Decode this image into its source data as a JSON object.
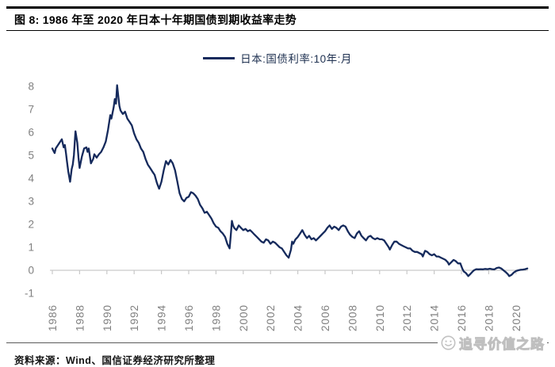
{
  "header": {
    "title": "图 8: 1986 年至 2020 年日本十年期国债到期收益率走势"
  },
  "legend": {
    "label": "日本:国债利率:10年:月"
  },
  "footer": {
    "source": "资料来源：Wind、国信证券经济研究所整理",
    "watermark": "追寻价值之路",
    "watermark_icon": "smiley-face-icon"
  },
  "colors": {
    "line": "#152a5c",
    "legend_text": "#1e3050",
    "axis_label": "#808080",
    "axis_line": "#c9c9c9",
    "title_text": "#000000",
    "rules": "#000000",
    "bottom_rule": "#5a5a5a",
    "watermark": "#bfbfbf"
  },
  "chart_data": {
    "type": "line",
    "title": "1986年至2020年日本十年期国债到期收益率走势",
    "xlabel": "",
    "ylabel": "",
    "xlim": [
      1985.8,
      2021.8
    ],
    "ylim": [
      -1,
      8.3
    ],
    "grid": false,
    "legend_position": "top-center",
    "x_ticks": [
      1986,
      1988,
      1990,
      1992,
      1994,
      1996,
      1998,
      2000,
      2002,
      2004,
      2006,
      2008,
      2010,
      2012,
      2014,
      2016,
      2018,
      2020
    ],
    "y_ticks": [
      8,
      7,
      6,
      5,
      4,
      3,
      2,
      1,
      0,
      -1
    ],
    "series": [
      {
        "name": "日本:国债利率:10年:月",
        "unit": "%",
        "points": [
          [
            1986.0,
            5.3
          ],
          [
            1986.08,
            5.2
          ],
          [
            1986.17,
            5.1
          ],
          [
            1986.25,
            5.3
          ],
          [
            1986.42,
            5.45
          ],
          [
            1986.58,
            5.6
          ],
          [
            1986.7,
            5.7
          ],
          [
            1986.83,
            5.35
          ],
          [
            1986.92,
            5.45
          ],
          [
            1987.0,
            5.1
          ],
          [
            1987.08,
            4.7
          ],
          [
            1987.17,
            4.3
          ],
          [
            1987.3,
            3.85
          ],
          [
            1987.42,
            4.4
          ],
          [
            1987.5,
            4.6
          ],
          [
            1987.58,
            5.0
          ],
          [
            1987.7,
            6.05
          ],
          [
            1987.83,
            5.55
          ],
          [
            1987.92,
            4.9
          ],
          [
            1988.0,
            4.45
          ],
          [
            1988.17,
            4.95
          ],
          [
            1988.33,
            5.3
          ],
          [
            1988.5,
            5.35
          ],
          [
            1988.58,
            5.15
          ],
          [
            1988.67,
            5.3
          ],
          [
            1988.83,
            4.65
          ],
          [
            1989.0,
            4.85
          ],
          [
            1989.08,
            5.05
          ],
          [
            1989.25,
            4.9
          ],
          [
            1989.42,
            5.05
          ],
          [
            1989.58,
            5.15
          ],
          [
            1989.75,
            5.35
          ],
          [
            1989.92,
            5.6
          ],
          [
            1990.08,
            6.1
          ],
          [
            1990.25,
            6.75
          ],
          [
            1990.33,
            6.6
          ],
          [
            1990.5,
            7.1
          ],
          [
            1990.58,
            7.45
          ],
          [
            1990.67,
            7.25
          ],
          [
            1990.75,
            8.05
          ],
          [
            1990.83,
            7.6
          ],
          [
            1990.92,
            7.15
          ],
          [
            1991.0,
            6.95
          ],
          [
            1991.17,
            6.8
          ],
          [
            1991.33,
            6.9
          ],
          [
            1991.5,
            6.6
          ],
          [
            1991.67,
            6.45
          ],
          [
            1991.83,
            6.3
          ],
          [
            1992.0,
            5.95
          ],
          [
            1992.17,
            5.7
          ],
          [
            1992.33,
            5.55
          ],
          [
            1992.5,
            5.3
          ],
          [
            1992.67,
            5.15
          ],
          [
            1992.83,
            4.85
          ],
          [
            1993.0,
            4.6
          ],
          [
            1993.17,
            4.45
          ],
          [
            1993.33,
            4.3
          ],
          [
            1993.5,
            4.15
          ],
          [
            1993.67,
            3.8
          ],
          [
            1993.83,
            3.55
          ],
          [
            1994.0,
            3.85
          ],
          [
            1994.17,
            4.35
          ],
          [
            1994.33,
            4.75
          ],
          [
            1994.5,
            4.6
          ],
          [
            1994.67,
            4.8
          ],
          [
            1994.83,
            4.65
          ],
          [
            1995.0,
            4.35
          ],
          [
            1995.17,
            3.85
          ],
          [
            1995.33,
            3.35
          ],
          [
            1995.5,
            3.1
          ],
          [
            1995.67,
            3.0
          ],
          [
            1995.83,
            3.15
          ],
          [
            1996.0,
            3.2
          ],
          [
            1996.17,
            3.4
          ],
          [
            1996.33,
            3.35
          ],
          [
            1996.5,
            3.25
          ],
          [
            1996.67,
            3.1
          ],
          [
            1996.83,
            2.85
          ],
          [
            1997.0,
            2.7
          ],
          [
            1997.17,
            2.5
          ],
          [
            1997.33,
            2.55
          ],
          [
            1997.5,
            2.4
          ],
          [
            1997.67,
            2.25
          ],
          [
            1997.83,
            2.05
          ],
          [
            1998.0,
            1.9
          ],
          [
            1998.17,
            1.85
          ],
          [
            1998.33,
            1.7
          ],
          [
            1998.5,
            1.6
          ],
          [
            1998.67,
            1.45
          ],
          [
            1998.83,
            1.15
          ],
          [
            1999.0,
            0.95
          ],
          [
            1999.08,
            1.5
          ],
          [
            1999.17,
            2.15
          ],
          [
            1999.25,
            1.95
          ],
          [
            1999.33,
            1.85
          ],
          [
            1999.5,
            1.75
          ],
          [
            1999.67,
            1.95
          ],
          [
            1999.83,
            1.85
          ],
          [
            2000.0,
            1.75
          ],
          [
            2000.17,
            1.8
          ],
          [
            2000.33,
            1.7
          ],
          [
            2000.5,
            1.75
          ],
          [
            2000.67,
            1.65
          ],
          [
            2000.83,
            1.55
          ],
          [
            2001.0,
            1.45
          ],
          [
            2001.17,
            1.35
          ],
          [
            2001.33,
            1.25
          ],
          [
            2001.5,
            1.2
          ],
          [
            2001.67,
            1.35
          ],
          [
            2001.83,
            1.3
          ],
          [
            2002.0,
            1.15
          ],
          [
            2002.17,
            1.25
          ],
          [
            2002.33,
            1.2
          ],
          [
            2002.5,
            1.1
          ],
          [
            2002.67,
            1.0
          ],
          [
            2002.83,
            0.95
          ],
          [
            2003.0,
            0.8
          ],
          [
            2003.17,
            0.65
          ],
          [
            2003.33,
            0.55
          ],
          [
            2003.5,
            0.9
          ],
          [
            2003.58,
            1.25
          ],
          [
            2003.67,
            1.15
          ],
          [
            2003.83,
            1.35
          ],
          [
            2004.0,
            1.45
          ],
          [
            2004.17,
            1.6
          ],
          [
            2004.33,
            1.75
          ],
          [
            2004.5,
            1.55
          ],
          [
            2004.67,
            1.4
          ],
          [
            2004.83,
            1.5
          ],
          [
            2005.0,
            1.35
          ],
          [
            2005.17,
            1.4
          ],
          [
            2005.33,
            1.3
          ],
          [
            2005.5,
            1.4
          ],
          [
            2005.67,
            1.5
          ],
          [
            2005.83,
            1.6
          ],
          [
            2006.0,
            1.7
          ],
          [
            2006.17,
            1.85
          ],
          [
            2006.33,
            1.95
          ],
          [
            2006.5,
            1.8
          ],
          [
            2006.67,
            1.9
          ],
          [
            2006.83,
            1.85
          ],
          [
            2007.0,
            1.75
          ],
          [
            2007.17,
            1.9
          ],
          [
            2007.33,
            1.95
          ],
          [
            2007.5,
            1.9
          ],
          [
            2007.67,
            1.7
          ],
          [
            2007.83,
            1.55
          ],
          [
            2008.0,
            1.45
          ],
          [
            2008.17,
            1.4
          ],
          [
            2008.33,
            1.6
          ],
          [
            2008.5,
            1.7
          ],
          [
            2008.67,
            1.5
          ],
          [
            2008.83,
            1.4
          ],
          [
            2009.0,
            1.3
          ],
          [
            2009.17,
            1.45
          ],
          [
            2009.33,
            1.5
          ],
          [
            2009.5,
            1.4
          ],
          [
            2009.67,
            1.35
          ],
          [
            2009.83,
            1.4
          ],
          [
            2010.0,
            1.35
          ],
          [
            2010.17,
            1.35
          ],
          [
            2010.33,
            1.3
          ],
          [
            2010.5,
            1.15
          ],
          [
            2010.67,
            1.0
          ],
          [
            2010.75,
            0.9
          ],
          [
            2010.92,
            1.1
          ],
          [
            2011.08,
            1.25
          ],
          [
            2011.25,
            1.25
          ],
          [
            2011.42,
            1.15
          ],
          [
            2011.58,
            1.1
          ],
          [
            2011.75,
            1.05
          ],
          [
            2011.92,
            1.0
          ],
          [
            2012.08,
            0.95
          ],
          [
            2012.25,
            0.95
          ],
          [
            2012.42,
            0.85
          ],
          [
            2012.58,
            0.8
          ],
          [
            2012.75,
            0.8
          ],
          [
            2012.92,
            0.75
          ],
          [
            2013.08,
            0.7
          ],
          [
            2013.17,
            0.6
          ],
          [
            2013.33,
            0.85
          ],
          [
            2013.5,
            0.8
          ],
          [
            2013.67,
            0.7
          ],
          [
            2013.83,
            0.65
          ],
          [
            2014.0,
            0.7
          ],
          [
            2014.17,
            0.6
          ],
          [
            2014.33,
            0.6
          ],
          [
            2014.5,
            0.55
          ],
          [
            2014.67,
            0.5
          ],
          [
            2014.83,
            0.45
          ],
          [
            2015.0,
            0.35
          ],
          [
            2015.08,
            0.25
          ],
          [
            2015.25,
            0.35
          ],
          [
            2015.42,
            0.45
          ],
          [
            2015.58,
            0.4
          ],
          [
            2015.75,
            0.3
          ],
          [
            2015.92,
            0.3
          ],
          [
            2016.08,
            0.05
          ],
          [
            2016.17,
            -0.05
          ],
          [
            2016.33,
            -0.12
          ],
          [
            2016.5,
            -0.25
          ],
          [
            2016.67,
            -0.15
          ],
          [
            2016.83,
            -0.05
          ],
          [
            2016.92,
            0.0
          ],
          [
            2017.08,
            0.05
          ],
          [
            2017.25,
            0.04
          ],
          [
            2017.42,
            0.05
          ],
          [
            2017.58,
            0.04
          ],
          [
            2017.75,
            0.06
          ],
          [
            2017.92,
            0.05
          ],
          [
            2018.08,
            0.07
          ],
          [
            2018.25,
            0.05
          ],
          [
            2018.42,
            0.04
          ],
          [
            2018.58,
            0.1
          ],
          [
            2018.75,
            0.12
          ],
          [
            2018.92,
            0.08
          ],
          [
            2019.08,
            0.0
          ],
          [
            2019.25,
            -0.08
          ],
          [
            2019.42,
            -0.18
          ],
          [
            2019.5,
            -0.25
          ],
          [
            2019.67,
            -0.2
          ],
          [
            2019.83,
            -0.1
          ],
          [
            2020.0,
            -0.03
          ],
          [
            2020.17,
            0.0
          ],
          [
            2020.33,
            0.02
          ],
          [
            2020.5,
            0.03
          ],
          [
            2020.67,
            0.05
          ],
          [
            2020.83,
            0.08
          ]
        ]
      }
    ]
  }
}
